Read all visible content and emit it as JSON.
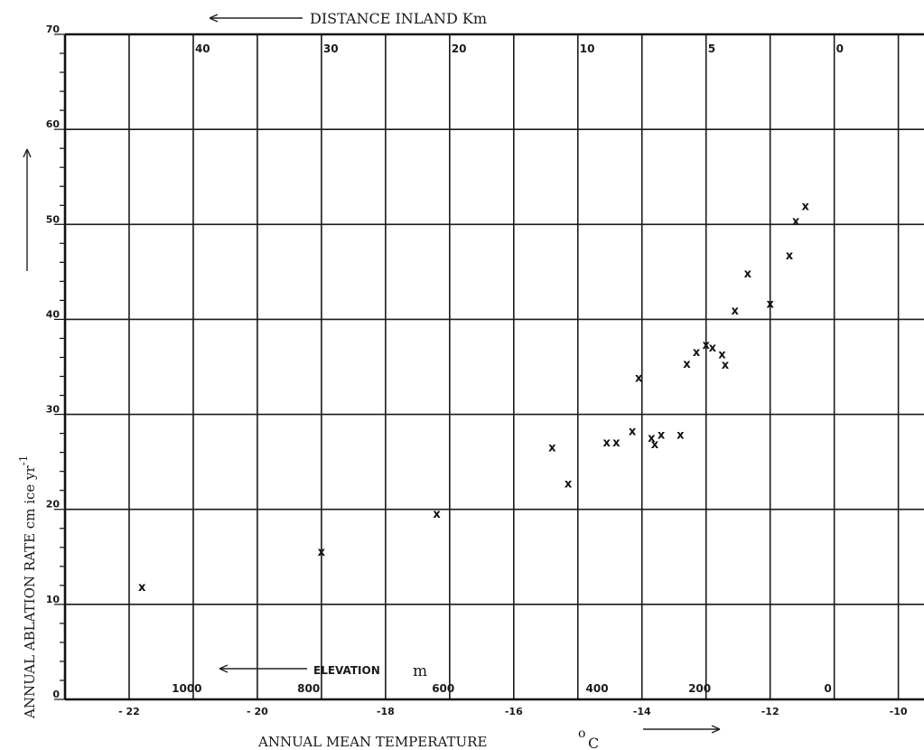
{
  "chart_data": {
    "type": "scatter",
    "xlabel": "ANNUAL MEAN TEMPERATURE",
    "xunit_main": "o",
    "xunit_sub": "C",
    "ylabel_main": "ANNUAL ABLATION RATE  cm  ice  yr",
    "ylabel_sup": "-1",
    "top_axis_title": "DISTANCE  INLAND   Km",
    "elevation_label": "ELEVATION",
    "elevation_unit": "m",
    "xlim": [
      -23,
      -9.6
    ],
    "ylim": [
      0,
      70
    ],
    "grid": true,
    "x_ticks": [
      {
        "v": -22,
        "label": "- 22"
      },
      {
        "v": -20,
        "label": "- 20"
      },
      {
        "v": -18,
        "label": "-18"
      },
      {
        "v": -16,
        "label": "-16"
      },
      {
        "v": -14,
        "label": "-14"
      },
      {
        "v": -12,
        "label": "-12"
      },
      {
        "v": -10,
        "label": "-10"
      }
    ],
    "y_ticks": [
      {
        "v": 0,
        "label": "0"
      },
      {
        "v": 10,
        "label": "10"
      },
      {
        "v": 20,
        "label": "20"
      },
      {
        "v": 30,
        "label": "30"
      },
      {
        "v": 40,
        "label": "40"
      },
      {
        "v": 50,
        "label": "50"
      },
      {
        "v": 60,
        "label": "60"
      },
      {
        "v": 70,
        "label": "70"
      }
    ],
    "distance_labels": [
      {
        "t": -21.0,
        "label": "40"
      },
      {
        "t": -19.0,
        "label": "30"
      },
      {
        "t": -17.0,
        "label": "20"
      },
      {
        "t": -15.0,
        "label": "10"
      },
      {
        "t": -13.0,
        "label": "5"
      },
      {
        "t": -11.0,
        "label": "0"
      }
    ],
    "elevation_labels": [
      {
        "t": -21.1,
        "label": "1000"
      },
      {
        "t": -19.2,
        "label": "800"
      },
      {
        "t": -17.1,
        "label": "600"
      },
      {
        "t": -14.7,
        "label": "400"
      },
      {
        "t": -13.1,
        "label": "200"
      },
      {
        "t": -11.1,
        "label": "0"
      }
    ],
    "points": [
      {
        "x": -21.8,
        "y": 11.8
      },
      {
        "x": -19.0,
        "y": 15.5
      },
      {
        "x": -17.2,
        "y": 19.5
      },
      {
        "x": -15.4,
        "y": 26.5
      },
      {
        "x": -15.15,
        "y": 22.7
      },
      {
        "x": -14.55,
        "y": 27.0
      },
      {
        "x": -14.4,
        "y": 27.0
      },
      {
        "x": -14.15,
        "y": 28.2
      },
      {
        "x": -14.05,
        "y": 33.8
      },
      {
        "x": -13.85,
        "y": 27.5
      },
      {
        "x": -13.8,
        "y": 26.8
      },
      {
        "x": -13.7,
        "y": 27.8
      },
      {
        "x": -13.4,
        "y": 27.8
      },
      {
        "x": -13.3,
        "y": 35.3
      },
      {
        "x": -13.15,
        "y": 36.5
      },
      {
        "x": -13.0,
        "y": 37.3
      },
      {
        "x": -12.9,
        "y": 37.0
      },
      {
        "x": -12.75,
        "y": 36.3
      },
      {
        "x": -12.7,
        "y": 35.2
      },
      {
        "x": -12.55,
        "y": 40.9
      },
      {
        "x": -12.35,
        "y": 44.8
      },
      {
        "x": -12.0,
        "y": 41.6
      },
      {
        "x": -11.7,
        "y": 46.7
      },
      {
        "x": -11.6,
        "y": 50.3
      },
      {
        "x": -11.45,
        "y": 51.9
      }
    ]
  }
}
